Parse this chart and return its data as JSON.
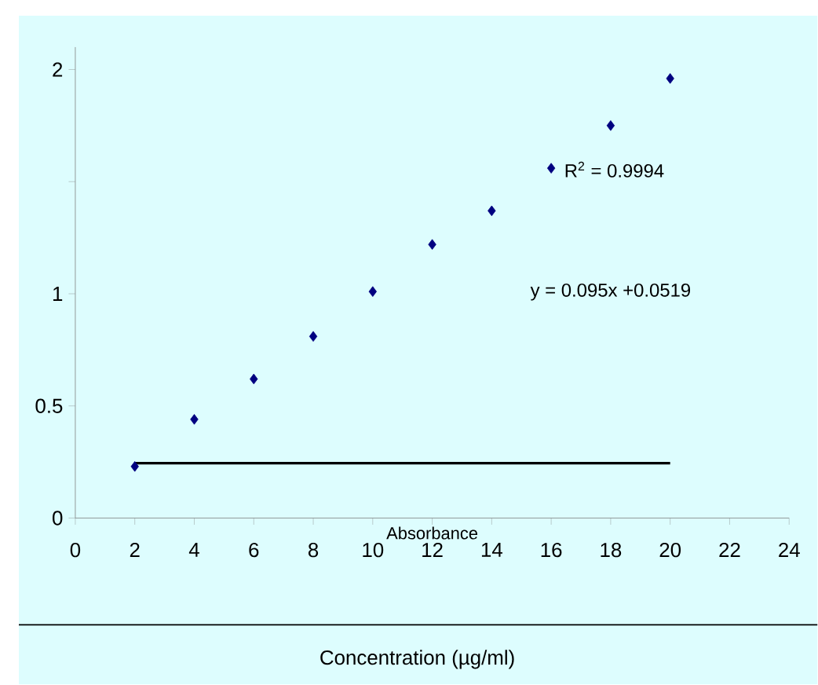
{
  "chart_data": {
    "type": "scatter",
    "xlabel": "Concentration (µg/ml)",
    "annotations": [
      "R$^{2}$ = 0.9994",
      "y = 0.095x +0.0519",
      "Absorbance"
    ],
    "series": [
      {
        "color": "#000080",
        "marker": "diamond",
        "x": [
          2,
          4,
          6,
          8,
          10,
          12,
          14,
          16,
          18,
          20
        ],
        "values": [
          0.23,
          0.44,
          0.62,
          0.81,
          1.01,
          1.22,
          1.37,
          1.56,
          1.75,
          1.96
        ]
      },
      {
        "type": "line",
        "color": "#000000",
        "marker": "none",
        "x": [
          2,
          20
        ],
        "values": [
          0.245,
          0.245
        ]
      }
    ],
    "xlim": [
      0,
      24
    ],
    "xticks": [
      0,
      2,
      4,
      6,
      8,
      10,
      12,
      14,
      16,
      18,
      20,
      22,
      24
    ],
    "ylim": [
      0,
      2.1
    ],
    "yticks": [
      0,
      0.5,
      1,
      {
        "value": 1.5,
        "label": null
      },
      2
    ],
    "grid": false
  }
}
